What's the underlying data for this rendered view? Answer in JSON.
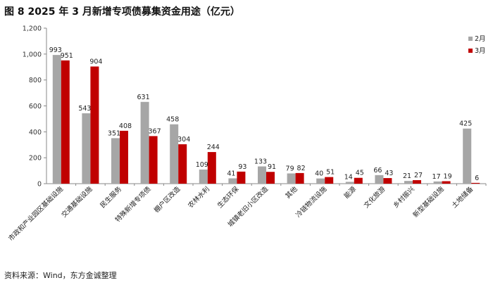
{
  "figure": {
    "title": "图 8  2025 年 3 月新增专项债募集资金用途（亿元）",
    "source": "资料来源：Wind，东方金诚整理"
  },
  "chart_data": {
    "type": "bar",
    "title": "图 8  2025 年 3 月新增专项债募集资金用途（亿元）",
    "xlabel": "",
    "ylabel": "",
    "ylim": [
      0,
      1200
    ],
    "yticks": [
      0,
      200,
      400,
      600,
      800,
      1000,
      1200
    ],
    "ytick_labels": [
      "0",
      "200",
      "400",
      "600",
      "800",
      "1,000",
      "1,200"
    ],
    "grid": false,
    "legend_position": "top-right",
    "categories": [
      "市政和产业园区基础设施",
      "交通基础设施",
      "民生服务",
      "特殊新增专项债",
      "棚户区改造",
      "农林水利",
      "生态环保",
      "城镇老旧小区改造",
      "其他",
      "冷链物流设施",
      "能源",
      "文化旅游",
      "乡村振兴",
      "新型基础设施",
      "土地储备"
    ],
    "series": [
      {
        "name": "2月",
        "color": "#a6a6a6",
        "values": [
          993,
          543,
          351,
          631,
          458,
          109,
          41,
          133,
          79,
          40,
          14,
          66,
          21,
          17,
          425
        ]
      },
      {
        "name": "3月",
        "color": "#c00000",
        "values": [
          951,
          904,
          408,
          367,
          304,
          244,
          93,
          91,
          82,
          51,
          45,
          43,
          27,
          19,
          6
        ]
      }
    ]
  }
}
